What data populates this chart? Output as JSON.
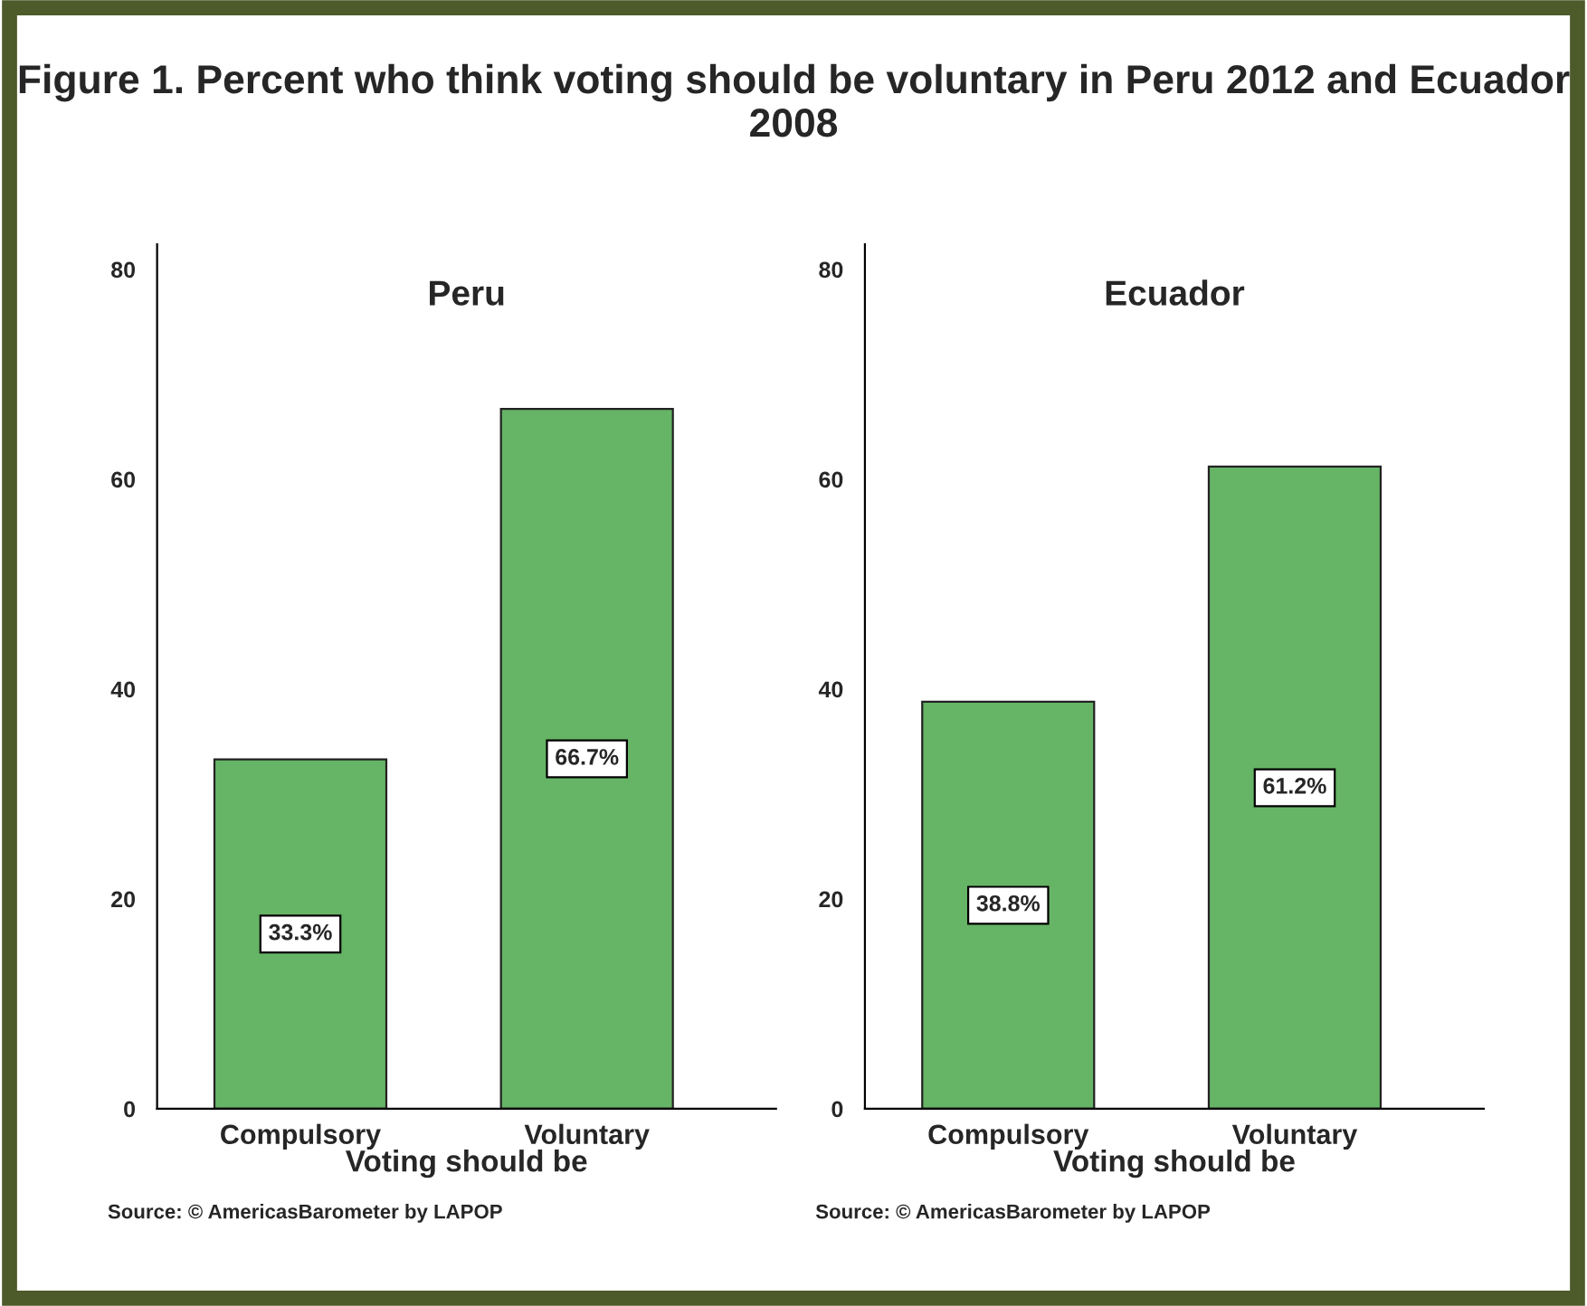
{
  "chart_data": [
    {
      "type": "bar",
      "title": "Figure 1. Percent who think voting should be voluntary in Peru 2012 and Ecuador 2008",
      "subtitle": "Peru",
      "xlabel": "Voting should be",
      "categories": [
        "Compulsory",
        "Voluntary"
      ],
      "values": [
        33.3,
        66.7
      ],
      "value_labels": [
        "33.3%",
        "66.7%"
      ],
      "color": "#66b466",
      "ylim": [
        0,
        82.4
      ],
      "yticks": [
        0,
        20,
        40,
        60,
        80
      ],
      "grid": false,
      "legend": false,
      "annotations": [
        "Source: © AmericasBarometer by LAPOP"
      ]
    },
    {
      "type": "bar",
      "subtitle": "Ecuador",
      "xlabel": "Voting should be",
      "categories": [
        "Compulsory",
        "Voluntary"
      ],
      "values": [
        38.8,
        61.2
      ],
      "value_labels": [
        "38.8%",
        "61.2%"
      ],
      "color": "#66b466",
      "ylim": [
        0,
        82.4
      ],
      "yticks": [
        0,
        20,
        40,
        60,
        80
      ],
      "grid": false,
      "legend": false,
      "annotations": [
        "Source: © AmericasBarometer by LAPOP"
      ]
    }
  ]
}
